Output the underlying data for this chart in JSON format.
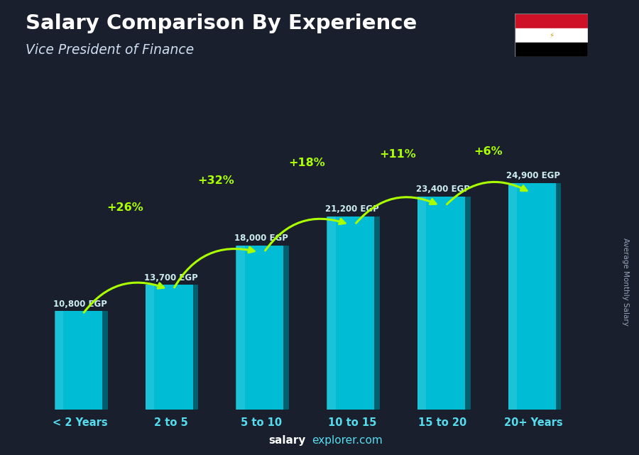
{
  "title": "Salary Comparison By Experience",
  "subtitle": "Vice President of Finance",
  "categories": [
    "< 2 Years",
    "2 to 5",
    "5 to 10",
    "10 to 15",
    "15 to 20",
    "20+ Years"
  ],
  "values": [
    10800,
    13700,
    18000,
    21200,
    23400,
    24900
  ],
  "labels": [
    "10,800 EGP",
    "13,700 EGP",
    "18,000 EGP",
    "21,200 EGP",
    "23,400 EGP",
    "24,900 EGP"
  ],
  "pct_changes": [
    null,
    "+26%",
    "+32%",
    "+18%",
    "+11%",
    "+6%"
  ],
  "bar_color_main": "#00bcd4",
  "bar_color_light": "#26c6da",
  "bar_color_dark": "#00838f",
  "bar_color_side": "#005f6e",
  "bg_color": "#1a1f2e",
  "title_color": "#ffffff",
  "subtitle_color": "#ccddee",
  "label_color": "#cceeee",
  "pct_color": "#aaff00",
  "tick_color": "#55ddee",
  "watermark_salary_color": "#ffffff",
  "watermark_explorer_color": "#55ddee",
  "ylabel": "Average Monthly Salary",
  "ylabel_color": "#aabbcc",
  "max_val": 29000,
  "arrow_color": "#aaff00",
  "flag_colors": [
    "#CE1126",
    "#FFFFFF",
    "#000000"
  ]
}
